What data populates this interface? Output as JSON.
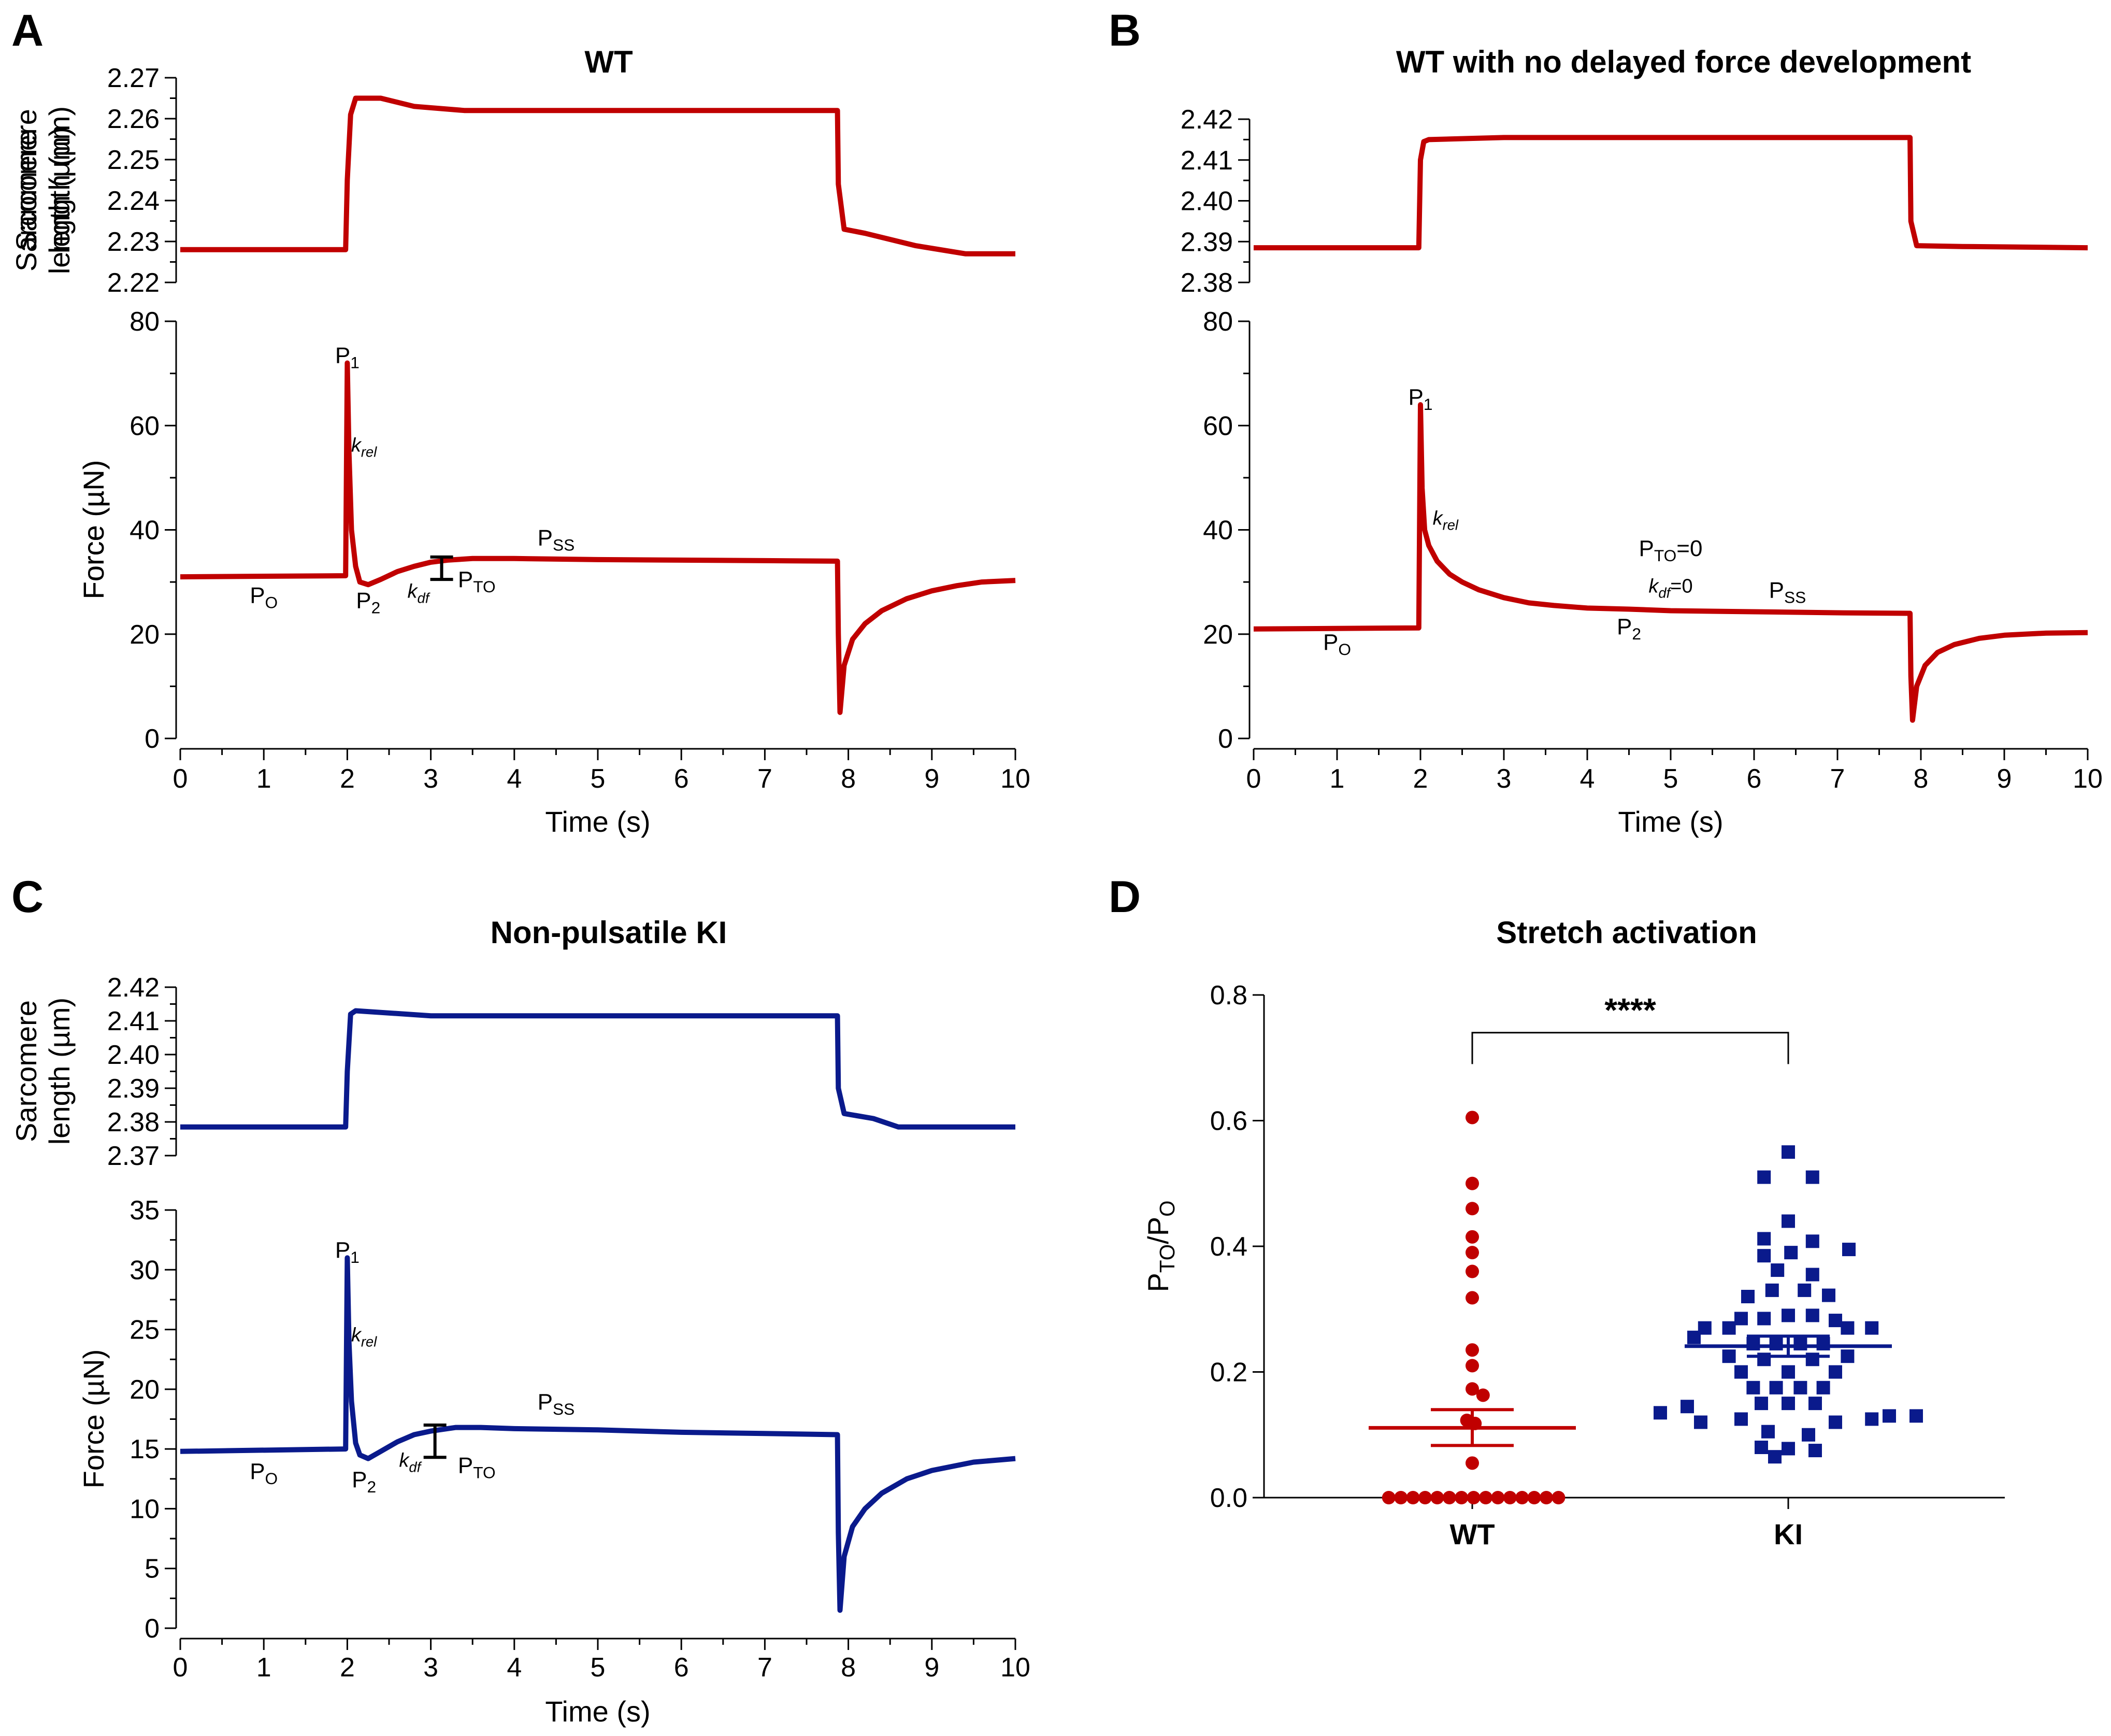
{
  "chart_data": [
    {
      "panel": "A",
      "type": "line",
      "title": "WT",
      "color": "#c00000",
      "xlabel": "Time (s)",
      "xlim": [
        0,
        10
      ],
      "xticks": [
        0,
        1,
        2,
        3,
        4,
        5,
        6,
        7,
        8,
        9,
        10
      ],
      "length_ylabel": [
        "Sarcomere",
        "length (µm)"
      ],
      "length_ylim": [
        2.22,
        2.27
      ],
      "length_yticks": [
        "2.22",
        "2.23",
        "2.24",
        "2.25",
        "2.26",
        "2.27"
      ],
      "length_series": {
        "name": "Sarcomere length",
        "x": [
          0,
          1.98,
          2.0,
          2.04,
          2.1,
          2.4,
          2.8,
          3.4,
          5,
          7.87,
          7.88,
          7.95,
          8.2,
          8.8,
          9.4,
          10
        ],
        "y": [
          2.228,
          2.228,
          2.245,
          2.261,
          2.265,
          2.265,
          2.263,
          2.262,
          2.262,
          2.262,
          2.244,
          2.233,
          2.232,
          2.229,
          2.227,
          2.227
        ]
      },
      "force_ylabel": "Force (µN)",
      "force_ylim": [
        0,
        80
      ],
      "force_yticks": [
        "0",
        "20",
        "40",
        "60",
        "80"
      ],
      "force_series": {
        "name": "Force",
        "x": [
          0,
          1.98,
          2.0,
          2.02,
          2.05,
          2.1,
          2.15,
          2.25,
          2.4,
          2.6,
          2.8,
          3.0,
          3.2,
          3.5,
          4,
          5,
          6,
          7,
          7.87,
          7.88,
          7.9,
          7.95,
          8.05,
          8.2,
          8.4,
          8.7,
          9.0,
          9.3,
          9.6,
          10
        ],
        "y": [
          31,
          31.2,
          72,
          55,
          40,
          33,
          30,
          29.5,
          30.5,
          32,
          33,
          33.8,
          34.2,
          34.5,
          34.5,
          34.3,
          34.2,
          34.1,
          34,
          20,
          5,
          14,
          19,
          22,
          24.5,
          26.8,
          28.3,
          29.3,
          30,
          30.3
        ]
      },
      "annotations": [
        {
          "text": "P",
          "sub": "1",
          "x": 2.0,
          "y": 72
        },
        {
          "text": "k",
          "sub": "rel",
          "x": 2.2,
          "y": 55
        },
        {
          "text": "P",
          "sub": "SS",
          "x": 4.5,
          "y": 37
        },
        {
          "text": "P",
          "sub": "O",
          "x": 1.0,
          "y": 26
        },
        {
          "text": "P",
          "sub": "2",
          "x": 2.25,
          "y": 25
        },
        {
          "text": "k",
          "sub": "df",
          "x": 2.85,
          "y": 27
        },
        {
          "text": "P",
          "sub": "TO",
          "x": 3.55,
          "y": 29
        }
      ],
      "errorbar": {
        "x": 3.13,
        "low": 30.5,
        "high": 34.8
      }
    },
    {
      "panel": "B",
      "type": "line",
      "title": "WT with no delayed force development",
      "color": "#c00000",
      "xlabel": "Time (s)",
      "xlim": [
        0,
        10
      ],
      "xticks": [
        0,
        1,
        2,
        3,
        4,
        5,
        6,
        7,
        8,
        9,
        10
      ],
      "length_ylabel": [
        "Sarcomere",
        "length (µm)"
      ],
      "length_ylim": [
        2.38,
        2.42
      ],
      "length_yticks": [
        "2.38",
        "2.39",
        "2.40",
        "2.41",
        "2.42"
      ],
      "length_series": {
        "name": "Sarcomere length",
        "x": [
          0,
          1.98,
          2.0,
          2.04,
          2.1,
          3,
          5,
          7.87,
          7.88,
          7.95,
          8.5,
          10
        ],
        "y": [
          2.3885,
          2.3885,
          2.41,
          2.4145,
          2.415,
          2.4155,
          2.4155,
          2.4155,
          2.395,
          2.389,
          2.3888,
          2.3885
        ]
      },
      "force_ylabel": "Force (µN)",
      "force_ylim": [
        0,
        80
      ],
      "force_yticks": [
        "0",
        "20",
        "40",
        "60",
        "80"
      ],
      "force_series": {
        "name": "Force",
        "x": [
          0,
          1.98,
          2.0,
          2.02,
          2.05,
          2.1,
          2.2,
          2.35,
          2.5,
          2.7,
          3.0,
          3.3,
          3.6,
          4.0,
          4.5,
          5.0,
          6.0,
          7.0,
          7.87,
          7.88,
          7.9,
          7.95,
          8.05,
          8.2,
          8.4,
          8.7,
          9.0,
          9.5,
          10
        ],
        "y": [
          21,
          21.2,
          64,
          48,
          40,
          37,
          34,
          31.5,
          30,
          28.5,
          27,
          26,
          25.5,
          25,
          24.8,
          24.5,
          24.3,
          24.1,
          24,
          12,
          3.5,
          10,
          14,
          16.5,
          18,
          19.2,
          19.8,
          20.2,
          20.3
        ]
      },
      "annotations": [
        {
          "text": "P",
          "sub": "1",
          "x": 2.0,
          "y": 64
        },
        {
          "text": "k",
          "sub": "rel",
          "x": 2.3,
          "y": 41
        },
        {
          "text": "P",
          "sub": "TO",
          "post": "=0",
          "x": 5.0,
          "y": 35
        },
        {
          "text": "k",
          "sub": "df",
          "post": "=0",
          "x": 5.0,
          "y": 28
        },
        {
          "text": "P",
          "sub": "SS",
          "x": 6.4,
          "y": 27
        },
        {
          "text": "P",
          "sub": "O",
          "x": 1.0,
          "y": 17
        },
        {
          "text": "P",
          "sub": "2",
          "x": 4.5,
          "y": 20
        }
      ]
    },
    {
      "panel": "C",
      "type": "line",
      "title": "Non-pulsatile KI",
      "color": "#0a1a8c",
      "xlabel": "Time (s)",
      "xlim": [
        0,
        10
      ],
      "xticks": [
        0,
        1,
        2,
        3,
        4,
        5,
        6,
        7,
        8,
        9,
        10
      ],
      "length_ylabel": [
        "Sarcomere",
        "length (µm)"
      ],
      "length_ylim": [
        2.37,
        2.42
      ],
      "length_yticks": [
        "2.37",
        "2.38",
        "2.39",
        "2.40",
        "2.41",
        "2.42"
      ],
      "length_series": {
        "name": "Sarcomere length",
        "x": [
          0,
          1.98,
          2.0,
          2.04,
          2.1,
          3,
          5,
          7.87,
          7.88,
          7.95,
          8.3,
          8.6,
          10
        ],
        "y": [
          2.3785,
          2.3785,
          2.395,
          2.412,
          2.413,
          2.4115,
          2.4115,
          2.4115,
          2.39,
          2.3825,
          2.381,
          2.3785,
          2.3785
        ]
      },
      "force_ylabel": "Force (µN)",
      "force_ylim": [
        0,
        35
      ],
      "force_yticks": [
        "0",
        "5",
        "10",
        "15",
        "20",
        "25",
        "30",
        "35"
      ],
      "force_series": {
        "name": "Force",
        "x": [
          0,
          1.98,
          2.0,
          2.02,
          2.05,
          2.1,
          2.15,
          2.25,
          2.4,
          2.6,
          2.8,
          3.0,
          3.3,
          3.6,
          4.0,
          5.0,
          6.0,
          7.0,
          7.87,
          7.88,
          7.9,
          7.95,
          8.05,
          8.2,
          8.4,
          8.7,
          9.0,
          9.5,
          10
        ],
        "y": [
          14.8,
          15,
          31,
          24,
          19,
          15.5,
          14.5,
          14.2,
          14.8,
          15.6,
          16.2,
          16.5,
          16.8,
          16.8,
          16.7,
          16.6,
          16.4,
          16.3,
          16.2,
          8,
          1.5,
          6,
          8.5,
          10,
          11.3,
          12.5,
          13.2,
          13.9,
          14.2
        ]
      },
      "annotations": [
        {
          "text": "P",
          "sub": "1",
          "x": 2.0,
          "y": 31
        },
        {
          "text": "k",
          "sub": "rel",
          "x": 2.2,
          "y": 24
        },
        {
          "text": "P",
          "sub": "SS",
          "x": 4.5,
          "y": 18.3
        },
        {
          "text": "P",
          "sub": "O",
          "x": 1.0,
          "y": 12.5
        },
        {
          "text": "P",
          "sub": "2",
          "x": 2.2,
          "y": 11.8
        },
        {
          "text": "k",
          "sub": "df",
          "x": 2.75,
          "y": 13.5
        },
        {
          "text": "P",
          "sub": "TO",
          "x": 3.55,
          "y": 13.0
        }
      ],
      "errorbar": {
        "x": 3.05,
        "low": 14.3,
        "high": 17.0
      }
    },
    {
      "panel": "D",
      "type": "scatter",
      "title": "Stretch activation",
      "ylabel": "PTO/PO",
      "ylim": [
        0,
        0.8
      ],
      "yticks": [
        "0.0",
        "0.2",
        "0.4",
        "0.6",
        "0.8"
      ],
      "categories": [
        "WT",
        "KI"
      ],
      "significance": "****",
      "series": [
        {
          "name": "WT",
          "color": "#c00000",
          "marker": "circle",
          "mean": 0.111,
          "sem_low": 0.083,
          "sem_high": 0.14,
          "points": [
            {
              "dx": 0,
              "y": 0.605
            },
            {
              "dx": 0,
              "y": 0.5
            },
            {
              "dx": 0,
              "y": 0.46
            },
            {
              "dx": 0,
              "y": 0.415
            },
            {
              "dx": 0,
              "y": 0.39
            },
            {
              "dx": 0,
              "y": 0.36
            },
            {
              "dx": 0,
              "y": 0.318
            },
            {
              "dx": 0,
              "y": 0.235
            },
            {
              "dx": 0,
              "y": 0.21
            },
            {
              "dx": 0,
              "y": 0.173
            },
            {
              "dx": 0.08,
              "y": 0.163
            },
            {
              "dx": 0.02,
              "y": 0.118
            },
            {
              "dx": -0.04,
              "y": 0.123
            },
            {
              "dx": 0,
              "y": 0.055
            },
            {
              "dx": -0.62,
              "y": 0
            },
            {
              "dx": -0.53,
              "y": 0
            },
            {
              "dx": -0.44,
              "y": 0
            },
            {
              "dx": -0.35,
              "y": 0
            },
            {
              "dx": -0.26,
              "y": 0
            },
            {
              "dx": -0.17,
              "y": 0
            },
            {
              "dx": -0.08,
              "y": 0
            },
            {
              "dx": 0.01,
              "y": 0
            },
            {
              "dx": 0.1,
              "y": 0
            },
            {
              "dx": 0.19,
              "y": 0
            },
            {
              "dx": 0.28,
              "y": 0
            },
            {
              "dx": 0.37,
              "y": 0
            },
            {
              "dx": 0.46,
              "y": 0
            },
            {
              "dx": 0.55,
              "y": 0
            },
            {
              "dx": 0.64,
              "y": 0
            }
          ]
        },
        {
          "name": "KI",
          "color": "#0a1a8c",
          "marker": "square",
          "mean": 0.241,
          "sem_low": 0.225,
          "sem_high": 0.257,
          "points": [
            {
              "dx": 0,
              "y": 0.55
            },
            {
              "dx": -0.18,
              "y": 0.51
            },
            {
              "dx": 0.18,
              "y": 0.51
            },
            {
              "dx": 0,
              "y": 0.44
            },
            {
              "dx": -0.18,
              "y": 0.412
            },
            {
              "dx": 0.18,
              "y": 0.408
            },
            {
              "dx": -0.18,
              "y": 0.385
            },
            {
              "dx": 0.02,
              "y": 0.39
            },
            {
              "dx": 0.45,
              "y": 0.395
            },
            {
              "dx": -0.08,
              "y": 0.362
            },
            {
              "dx": 0.18,
              "y": 0.355
            },
            {
              "dx": -0.3,
              "y": 0.32
            },
            {
              "dx": -0.12,
              "y": 0.33
            },
            {
              "dx": 0.12,
              "y": 0.33
            },
            {
              "dx": 0.3,
              "y": 0.322
            },
            {
              "dx": -0.35,
              "y": 0.285
            },
            {
              "dx": -0.18,
              "y": 0.285
            },
            {
              "dx": 0,
              "y": 0.29
            },
            {
              "dx": 0.18,
              "y": 0.29
            },
            {
              "dx": 0.35,
              "y": 0.282
            },
            {
              "dx": -0.62,
              "y": 0.27
            },
            {
              "dx": -0.44,
              "y": 0.27
            },
            {
              "dx": 0.44,
              "y": 0.27
            },
            {
              "dx": 0.62,
              "y": 0.27
            },
            {
              "dx": -0.7,
              "y": 0.255
            },
            {
              "dx": -0.26,
              "y": 0.245
            },
            {
              "dx": -0.09,
              "y": 0.245
            },
            {
              "dx": 0.09,
              "y": 0.245
            },
            {
              "dx": 0.26,
              "y": 0.245
            },
            {
              "dx": -0.44,
              "y": 0.225
            },
            {
              "dx": -0.18,
              "y": 0.22
            },
            {
              "dx": 0.18,
              "y": 0.22
            },
            {
              "dx": 0.44,
              "y": 0.225
            },
            {
              "dx": -0.35,
              "y": 0.2
            },
            {
              "dx": 0,
              "y": 0.2
            },
            {
              "dx": 0.35,
              "y": 0.2
            },
            {
              "dx": -0.26,
              "y": 0.175
            },
            {
              "dx": -0.09,
              "y": 0.175
            },
            {
              "dx": 0.09,
              "y": 0.175
            },
            {
              "dx": 0.26,
              "y": 0.175
            },
            {
              "dx": -0.95,
              "y": 0.135
            },
            {
              "dx": -0.75,
              "y": 0.145
            },
            {
              "dx": -0.2,
              "y": 0.15
            },
            {
              "dx": 0,
              "y": 0.15
            },
            {
              "dx": 0.2,
              "y": 0.15
            },
            {
              "dx": 0.75,
              "y": 0.13
            },
            {
              "dx": 0.95,
              "y": 0.13
            },
            {
              "dx": -0.65,
              "y": 0.12
            },
            {
              "dx": -0.35,
              "y": 0.125
            },
            {
              "dx": 0.35,
              "y": 0.12
            },
            {
              "dx": 0.62,
              "y": 0.125
            },
            {
              "dx": -0.15,
              "y": 0.105
            },
            {
              "dx": 0.15,
              "y": 0.1
            },
            {
              "dx": -0.2,
              "y": 0.08
            },
            {
              "dx": 0,
              "y": 0.078
            },
            {
              "dx": 0.2,
              "y": 0.075
            },
            {
              "dx": -0.1,
              "y": 0.065
            }
          ]
        }
      ]
    }
  ]
}
